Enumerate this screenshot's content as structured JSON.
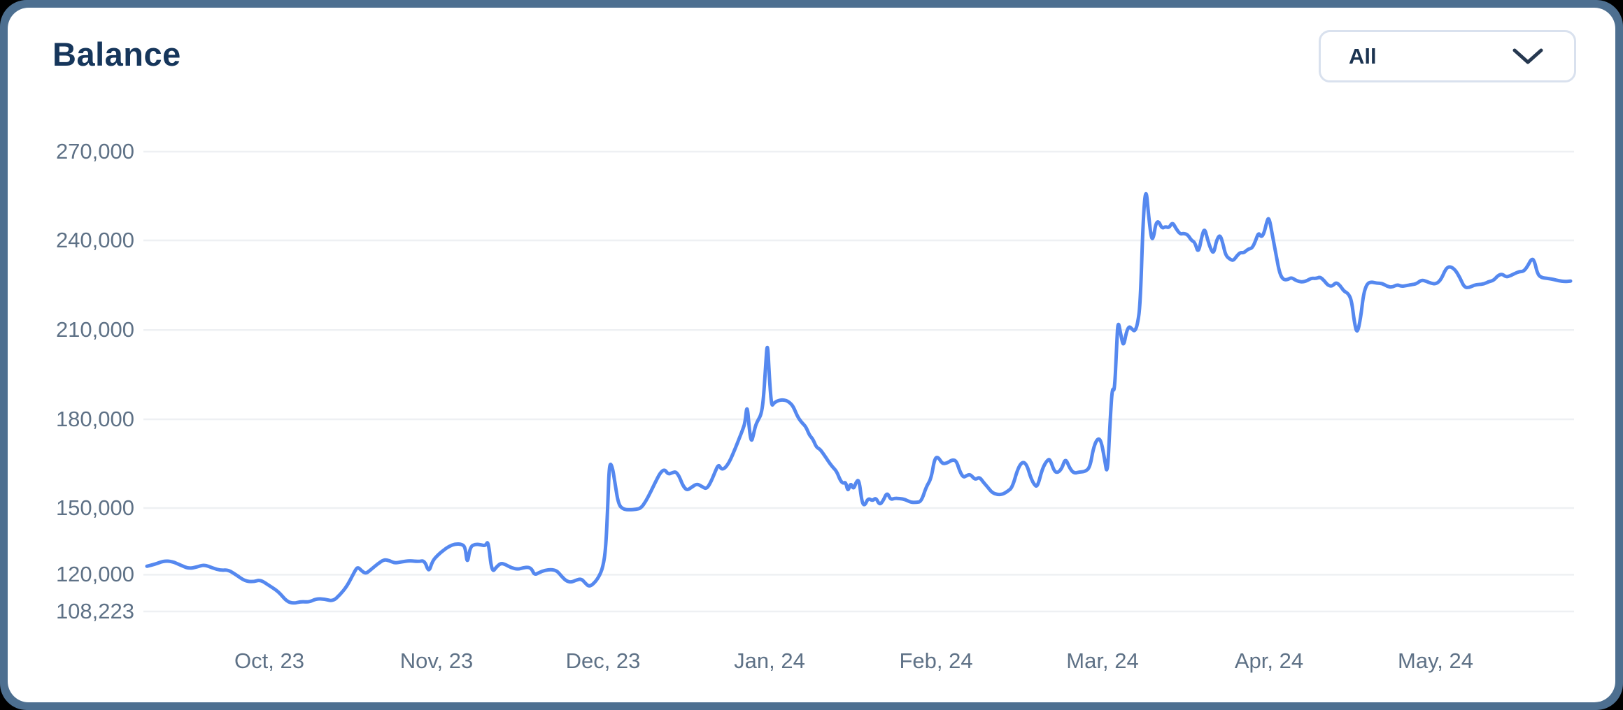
{
  "page": {
    "title": "Balance"
  },
  "filter_dropdown": {
    "selected": "All"
  },
  "colors": {
    "line": "#5588EF",
    "frame": "#4D6F90",
    "card": "#FFFFFF",
    "title_text": "#16365B",
    "axis_label": "#5E7186",
    "grid": "#EEF0F3",
    "dropdown_border": "#D9E1EE",
    "dropdown_text": "#1B3350",
    "chevron": "#263850"
  },
  "chart_data": {
    "type": "line",
    "title": "Balance",
    "series_name": "Balance",
    "legend": "none",
    "grid": "horizontal",
    "x_domain": [
      205,
      2250
    ],
    "x_ticks": [
      {
        "x": 385,
        "label": "Oct, 23"
      },
      {
        "x": 624,
        "label": "Nov, 23"
      },
      {
        "x": 862,
        "label": "Dec, 23"
      },
      {
        "x": 1100,
        "label": "Jan, 24"
      },
      {
        "x": 1338,
        "label": "Feb, 24"
      },
      {
        "x": 1576,
        "label": "Mar, 24"
      },
      {
        "x": 1814,
        "label": "Apr, 24"
      },
      {
        "x": 2052,
        "label": "May, 24"
      }
    ],
    "y_ticks": [
      {
        "value": 270000,
        "label": "270,000",
        "pos": 0.0
      },
      {
        "value": 240000,
        "label": "240,000",
        "pos": 0.193
      },
      {
        "value": 210000,
        "label": "210,000",
        "pos": 0.388
      },
      {
        "value": 180000,
        "label": "180,000",
        "pos": 0.582
      },
      {
        "value": 150000,
        "label": "150,000",
        "pos": 0.775
      },
      {
        "value": 120000,
        "label": "120,000",
        "pos": 0.92
      },
      {
        "value": 108223,
        "label": "108,223",
        "pos": 1.0
      }
    ],
    "y_min_label_is_data_min": true,
    "points": [
      [
        210,
        123800
      ],
      [
        222,
        124700
      ],
      [
        234,
        126200
      ],
      [
        246,
        126000
      ],
      [
        258,
        124300
      ],
      [
        270,
        122700
      ],
      [
        282,
        123500
      ],
      [
        292,
        124500
      ],
      [
        304,
        123000
      ],
      [
        316,
        121900
      ],
      [
        326,
        122200
      ],
      [
        338,
        119900
      ],
      [
        350,
        118000
      ],
      [
        362,
        117700
      ],
      [
        372,
        118400
      ],
      [
        385,
        116500
      ],
      [
        398,
        114600
      ],
      [
        410,
        111400
      ],
      [
        420,
        110800
      ],
      [
        430,
        111400
      ],
      [
        442,
        111200
      ],
      [
        452,
        112300
      ],
      [
        464,
        112200
      ],
      [
        476,
        111500
      ],
      [
        486,
        113600
      ],
      [
        496,
        116300
      ],
      [
        506,
        120900
      ],
      [
        511,
        123600
      ],
      [
        517,
        121700
      ],
      [
        523,
        120400
      ],
      [
        531,
        122500
      ],
      [
        540,
        124900
      ],
      [
        549,
        126800
      ],
      [
        556,
        126400
      ],
      [
        564,
        125200
      ],
      [
        574,
        125800
      ],
      [
        586,
        126300
      ],
      [
        598,
        125900
      ],
      [
        607,
        126400
      ],
      [
        613,
        120900
      ],
      [
        618,
        126100
      ],
      [
        626,
        128900
      ],
      [
        634,
        131000
      ],
      [
        642,
        132800
      ],
      [
        651,
        133900
      ],
      [
        660,
        133700
      ],
      [
        665,
        132500
      ],
      [
        668,
        124400
      ],
      [
        672,
        132600
      ],
      [
        680,
        133800
      ],
      [
        688,
        133400
      ],
      [
        694,
        133000
      ],
      [
        698,
        135400
      ],
      [
        703,
        120800
      ],
      [
        710,
        123600
      ],
      [
        716,
        125200
      ],
      [
        723,
        124500
      ],
      [
        731,
        123100
      ],
      [
        740,
        122400
      ],
      [
        748,
        123100
      ],
      [
        755,
        123400
      ],
      [
        760,
        122600
      ],
      [
        764,
        119900
      ],
      [
        771,
        121000
      ],
      [
        779,
        122000
      ],
      [
        788,
        122300
      ],
      [
        796,
        121800
      ],
      [
        803,
        119400
      ],
      [
        810,
        117900
      ],
      [
        817,
        117600
      ],
      [
        824,
        118300
      ],
      [
        831,
        118700
      ],
      [
        837,
        117200
      ],
      [
        842,
        116200
      ],
      [
        848,
        117000
      ],
      [
        856,
        119200
      ],
      [
        862,
        123500
      ],
      [
        866,
        132000
      ],
      [
        869,
        152000
      ],
      [
        871,
        165100
      ],
      [
        875,
        164400
      ],
      [
        879,
        158600
      ],
      [
        884,
        151200
      ],
      [
        891,
        149400
      ],
      [
        900,
        149200
      ],
      [
        909,
        149400
      ],
      [
        916,
        149900
      ],
      [
        923,
        152200
      ],
      [
        930,
        155400
      ],
      [
        938,
        159300
      ],
      [
        944,
        162000
      ],
      [
        950,
        163100
      ],
      [
        955,
        161400
      ],
      [
        961,
        161900
      ],
      [
        966,
        162300
      ],
      [
        971,
        160700
      ],
      [
        976,
        157600
      ],
      [
        982,
        155900
      ],
      [
        989,
        157100
      ],
      [
        996,
        158200
      ],
      [
        1003,
        157300
      ],
      [
        1010,
        156400
      ],
      [
        1016,
        158700
      ],
      [
        1022,
        162100
      ],
      [
        1027,
        164800
      ],
      [
        1031,
        163100
      ],
      [
        1036,
        163400
      ],
      [
        1042,
        165300
      ],
      [
        1047,
        167900
      ],
      [
        1053,
        171300
      ],
      [
        1058,
        174300
      ],
      [
        1062,
        176700
      ],
      [
        1065,
        178900
      ],
      [
        1068,
        185300
      ],
      [
        1071,
        176800
      ],
      [
        1074,
        172100
      ],
      [
        1077,
        174800
      ],
      [
        1080,
        177900
      ],
      [
        1084,
        179900
      ],
      [
        1088,
        181600
      ],
      [
        1091,
        186000
      ],
      [
        1094,
        196000
      ],
      [
        1097,
        207300
      ],
      [
        1100,
        193000
      ],
      [
        1103,
        184300
      ],
      [
        1106,
        185400
      ],
      [
        1110,
        186000
      ],
      [
        1114,
        186400
      ],
      [
        1119,
        186500
      ],
      [
        1124,
        186300
      ],
      [
        1129,
        185600
      ],
      [
        1134,
        184300
      ],
      [
        1140,
        180900
      ],
      [
        1146,
        178900
      ],
      [
        1152,
        177500
      ],
      [
        1157,
        174600
      ],
      [
        1162,
        173300
      ],
      [
        1167,
        170500
      ],
      [
        1172,
        169900
      ],
      [
        1178,
        168000
      ],
      [
        1184,
        165800
      ],
      [
        1190,
        163900
      ],
      [
        1196,
        162400
      ],
      [
        1201,
        159400
      ],
      [
        1205,
        158300
      ],
      [
        1209,
        158800
      ],
      [
        1212,
        155400
      ],
      [
        1216,
        158600
      ],
      [
        1220,
        156200
      ],
      [
        1224,
        158900
      ],
      [
        1228,
        159600
      ],
      [
        1232,
        152000
      ],
      [
        1236,
        150700
      ],
      [
        1241,
        153400
      ],
      [
        1247,
        152400
      ],
      [
        1252,
        153500
      ],
      [
        1257,
        151100
      ],
      [
        1262,
        152200
      ],
      [
        1268,
        155400
      ],
      [
        1273,
        152800
      ],
      [
        1279,
        153300
      ],
      [
        1286,
        153200
      ],
      [
        1294,
        152900
      ],
      [
        1302,
        151900
      ],
      [
        1310,
        151900
      ],
      [
        1317,
        152200
      ],
      [
        1324,
        157200
      ],
      [
        1331,
        159900
      ],
      [
        1336,
        166800
      ],
      [
        1341,
        167300
      ],
      [
        1347,
        164900
      ],
      [
        1354,
        165200
      ],
      [
        1361,
        166300
      ],
      [
        1367,
        166000
      ],
      [
        1372,
        162400
      ],
      [
        1377,
        160300
      ],
      [
        1382,
        161000
      ],
      [
        1387,
        161400
      ],
      [
        1394,
        159500
      ],
      [
        1400,
        160500
      ],
      [
        1406,
        158600
      ],
      [
        1412,
        157000
      ],
      [
        1418,
        155200
      ],
      [
        1426,
        154500
      ],
      [
        1434,
        154700
      ],
      [
        1440,
        155600
      ],
      [
        1447,
        156900
      ],
      [
        1455,
        163400
      ],
      [
        1462,
        165800
      ],
      [
        1468,
        164500
      ],
      [
        1473,
        160500
      ],
      [
        1478,
        158000
      ],
      [
        1483,
        157000
      ],
      [
        1490,
        163400
      ],
      [
        1497,
        166200
      ],
      [
        1501,
        166500
      ],
      [
        1507,
        162400
      ],
      [
        1512,
        161900
      ],
      [
        1518,
        163400
      ],
      [
        1523,
        166900
      ],
      [
        1529,
        163500
      ],
      [
        1535,
        161700
      ],
      [
        1543,
        162200
      ],
      [
        1551,
        162300
      ],
      [
        1558,
        163700
      ],
      [
        1563,
        170400
      ],
      [
        1569,
        173600
      ],
      [
        1574,
        172800
      ],
      [
        1579,
        166500
      ],
      [
        1583,
        160700
      ],
      [
        1587,
        180000
      ],
      [
        1590,
        190900
      ],
      [
        1593,
        189000
      ],
      [
        1596,
        203000
      ],
      [
        1598,
        213600
      ],
      [
        1602,
        208600
      ],
      [
        1606,
        204200
      ],
      [
        1610,
        209300
      ],
      [
        1614,
        211300
      ],
      [
        1618,
        210400
      ],
      [
        1622,
        209500
      ],
      [
        1626,
        211800
      ],
      [
        1630,
        218600
      ],
      [
        1634,
        247000
      ],
      [
        1638,
        258500
      ],
      [
        1642,
        248000
      ],
      [
        1646,
        240300
      ],
      [
        1649,
        241000
      ],
      [
        1652,
        245600
      ],
      [
        1656,
        246600
      ],
      [
        1661,
        244000
      ],
      [
        1666,
        244700
      ],
      [
        1671,
        244200
      ],
      [
        1676,
        246200
      ],
      [
        1681,
        244000
      ],
      [
        1687,
        242100
      ],
      [
        1692,
        242400
      ],
      [
        1698,
        241900
      ],
      [
        1703,
        240000
      ],
      [
        1708,
        239400
      ],
      [
        1713,
        235500
      ],
      [
        1718,
        241500
      ],
      [
        1722,
        244200
      ],
      [
        1726,
        240400
      ],
      [
        1731,
        236900
      ],
      [
        1735,
        235600
      ],
      [
        1739,
        240100
      ],
      [
        1744,
        242000
      ],
      [
        1748,
        239000
      ],
      [
        1752,
        235000
      ],
      [
        1758,
        233700
      ],
      [
        1763,
        233200
      ],
      [
        1768,
        234800
      ],
      [
        1773,
        236000
      ],
      [
        1778,
        235800
      ],
      [
        1784,
        237100
      ],
      [
        1790,
        237400
      ],
      [
        1795,
        240000
      ],
      [
        1799,
        242700
      ],
      [
        1803,
        241000
      ],
      [
        1807,
        242500
      ],
      [
        1811,
        246500
      ],
      [
        1814,
        247900
      ],
      [
        1819,
        241600
      ],
      [
        1824,
        235300
      ],
      [
        1829,
        229100
      ],
      [
        1834,
        226900
      ],
      [
        1840,
        226800
      ],
      [
        1846,
        227600
      ],
      [
        1851,
        226800
      ],
      [
        1857,
        226200
      ],
      [
        1863,
        226100
      ],
      [
        1869,
        226600
      ],
      [
        1875,
        227400
      ],
      [
        1881,
        227200
      ],
      [
        1887,
        227800
      ],
      [
        1893,
        226500
      ],
      [
        1898,
        225000
      ],
      [
        1904,
        224600
      ],
      [
        1910,
        226000
      ],
      [
        1916,
        224800
      ],
      [
        1921,
        223000
      ],
      [
        1927,
        222300
      ],
      [
        1932,
        220000
      ],
      [
        1936,
        212500
      ],
      [
        1940,
        208600
      ],
      [
        1945,
        214000
      ],
      [
        1949,
        222000
      ],
      [
        1954,
        225500
      ],
      [
        1960,
        226100
      ],
      [
        1968,
        225700
      ],
      [
        1976,
        225600
      ],
      [
        1983,
        224600
      ],
      [
        1990,
        224300
      ],
      [
        1997,
        225200
      ],
      [
        2004,
        224600
      ],
      [
        2011,
        224900
      ],
      [
        2018,
        225200
      ],
      [
        2025,
        225500
      ],
      [
        2032,
        226800
      ],
      [
        2039,
        226300
      ],
      [
        2046,
        225600
      ],
      [
        2053,
        225400
      ],
      [
        2060,
        226900
      ],
      [
        2067,
        230700
      ],
      [
        2073,
        231300
      ],
      [
        2080,
        230200
      ],
      [
        2087,
        227500
      ],
      [
        2093,
        224300
      ],
      [
        2100,
        224200
      ],
      [
        2107,
        225000
      ],
      [
        2114,
        225300
      ],
      [
        2121,
        225400
      ],
      [
        2128,
        226200
      ],
      [
        2135,
        226600
      ],
      [
        2141,
        228200
      ],
      [
        2147,
        228800
      ],
      [
        2153,
        227700
      ],
      [
        2159,
        228200
      ],
      [
        2165,
        228900
      ],
      [
        2172,
        229600
      ],
      [
        2178,
        229600
      ],
      [
        2184,
        231500
      ],
      [
        2189,
        233800
      ],
      [
        2193,
        233500
      ],
      [
        2198,
        228600
      ],
      [
        2204,
        227500
      ],
      [
        2212,
        227300
      ],
      [
        2220,
        227000
      ],
      [
        2228,
        226500
      ],
      [
        2237,
        226200
      ],
      [
        2245,
        226400
      ]
    ]
  }
}
